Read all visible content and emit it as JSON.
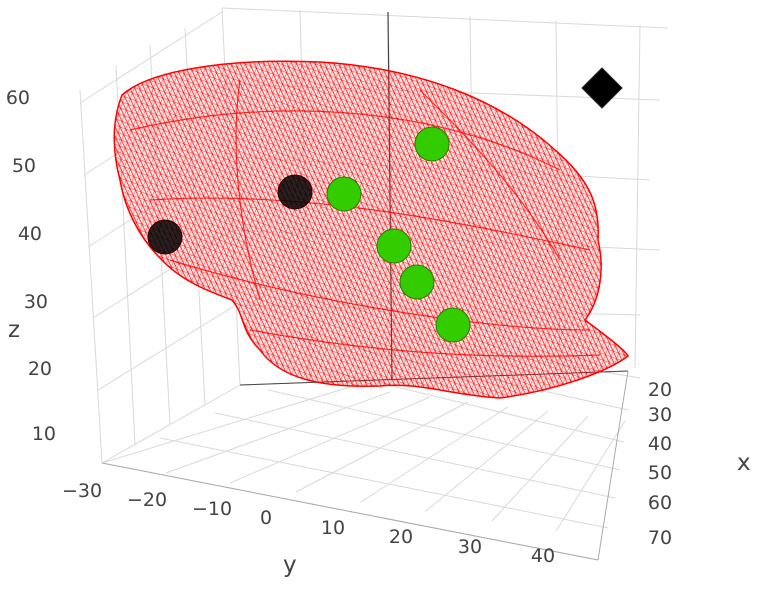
{
  "chart_data": {
    "type": "scatter3d",
    "title": "",
    "xaxis": {
      "label": "x",
      "ticks": [
        "20",
        "30",
        "40",
        "50",
        "60",
        "70"
      ]
    },
    "yaxis": {
      "label": "y",
      "ticks": [
        "−30",
        "−20",
        "−10",
        "0",
        "10",
        "20",
        "30",
        "40"
      ]
    },
    "zaxis": {
      "label": "z",
      "ticks": [
        "10",
        "20",
        "30",
        "40",
        "50",
        "60"
      ]
    },
    "mesh": {
      "style": "wireframe",
      "color": "#ff0000"
    },
    "series": [
      {
        "marker": "circle",
        "color": "#33cc00",
        "points": [
          {
            "x": 43,
            "y": 20,
            "z": 52
          },
          {
            "x": 40,
            "y": 2,
            "z": 46
          },
          {
            "x": 45,
            "y": 15,
            "z": 40
          },
          {
            "x": 47,
            "y": 17,
            "z": 36
          },
          {
            "x": 55,
            "y": 20,
            "z": 28
          }
        ]
      },
      {
        "marker": "circle",
        "color": "#000000",
        "points": [
          {
            "x": 35,
            "y": -6,
            "z": 47
          },
          {
            "x": 38,
            "y": -22,
            "z": 40
          }
        ]
      },
      {
        "marker": "diamond",
        "color": "#000000",
        "points": [
          {
            "x": 22,
            "y": 40,
            "z": 60
          }
        ]
      }
    ]
  }
}
